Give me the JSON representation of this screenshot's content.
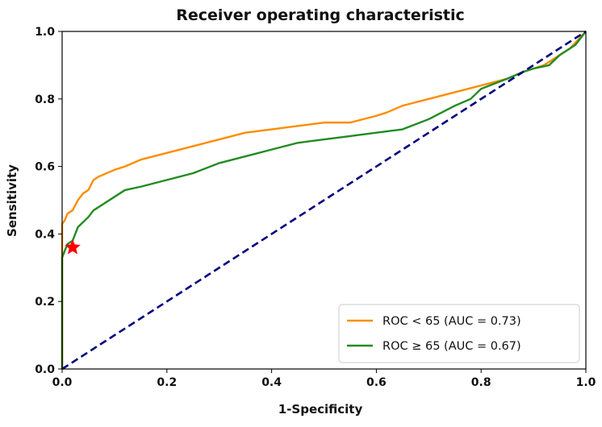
{
  "chart_data": {
    "type": "line",
    "title": "Receiver operating characteristic",
    "xlabel": "1-Specificity",
    "ylabel": "Sensitivity",
    "xlim": [
      0.0,
      1.0
    ],
    "ylim": [
      0.0,
      1.0
    ],
    "xticks": [
      "0.0",
      "0.2",
      "0.4",
      "0.6",
      "0.8",
      "1.0"
    ],
    "yticks": [
      "0.0",
      "0.2",
      "0.4",
      "0.6",
      "0.8",
      "1.0"
    ],
    "grid": false,
    "legend_position": "lower-right",
    "series": [
      {
        "name": "ROC < 65 (AUC = 0.73)",
        "color": "#ff8c00",
        "style": "solid",
        "x": [
          0.0,
          0.0,
          0.005,
          0.01,
          0.02,
          0.03,
          0.04,
          0.05,
          0.06,
          0.07,
          0.1,
          0.12,
          0.15,
          0.2,
          0.25,
          0.3,
          0.35,
          0.4,
          0.45,
          0.5,
          0.55,
          0.6,
          0.62,
          0.65,
          0.7,
          0.75,
          0.8,
          0.85,
          0.88,
          0.9,
          0.92,
          0.95,
          0.97,
          1.0
        ],
        "y": [
          0.0,
          0.43,
          0.44,
          0.46,
          0.47,
          0.5,
          0.52,
          0.53,
          0.56,
          0.57,
          0.59,
          0.6,
          0.62,
          0.64,
          0.66,
          0.68,
          0.7,
          0.71,
          0.72,
          0.73,
          0.73,
          0.75,
          0.76,
          0.78,
          0.8,
          0.82,
          0.84,
          0.86,
          0.88,
          0.89,
          0.9,
          0.93,
          0.95,
          1.0
        ]
      },
      {
        "name": "ROC ≥ 65 (AUC = 0.67)",
        "color": "#228b22",
        "style": "solid",
        "x": [
          0.0,
          0.0,
          0.005,
          0.01,
          0.02,
          0.03,
          0.05,
          0.06,
          0.08,
          0.1,
          0.12,
          0.15,
          0.2,
          0.25,
          0.3,
          0.35,
          0.4,
          0.45,
          0.5,
          0.55,
          0.6,
          0.65,
          0.7,
          0.75,
          0.78,
          0.8,
          0.85,
          0.88,
          0.9,
          0.93,
          0.95,
          0.98,
          1.0
        ],
        "y": [
          0.0,
          0.33,
          0.35,
          0.37,
          0.38,
          0.42,
          0.45,
          0.47,
          0.49,
          0.51,
          0.53,
          0.54,
          0.56,
          0.58,
          0.61,
          0.63,
          0.65,
          0.67,
          0.68,
          0.69,
          0.7,
          0.71,
          0.74,
          0.78,
          0.8,
          0.83,
          0.86,
          0.88,
          0.89,
          0.9,
          0.93,
          0.96,
          1.0
        ]
      },
      {
        "color": "#000080",
        "style": "dashed",
        "x": [
          0.0,
          1.0
        ],
        "y": [
          0.0,
          1.0
        ]
      }
    ],
    "markers": [
      {
        "shape": "star",
        "color": "#ff0000",
        "x": 0.02,
        "y": 0.36
      }
    ]
  }
}
